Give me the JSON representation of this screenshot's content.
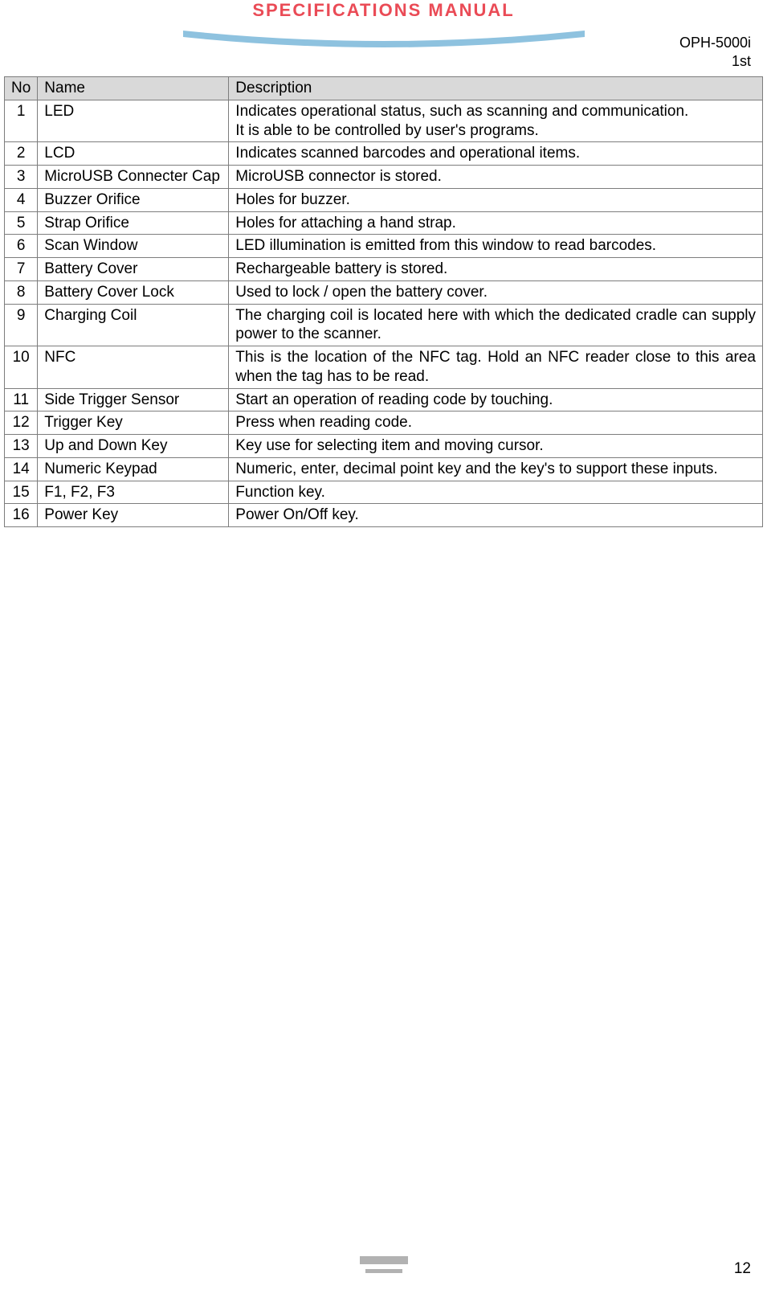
{
  "header": {
    "title": "SPECIFICATIONS MANUAL",
    "model": "OPH-5000i",
    "revision": "1st"
  },
  "table": {
    "columns": [
      "No",
      "Name",
      "Description"
    ],
    "rows": [
      {
        "no": "1",
        "name": "LED",
        "desc": "Indicates operational status, such as scanning and communication.\nIt is able to be controlled by user's programs."
      },
      {
        "no": "2",
        "name": "LCD",
        "desc": "Indicates scanned barcodes and operational items."
      },
      {
        "no": "3",
        "name": "MicroUSB Connecter Cap",
        "desc": "MicroUSB connector is stored."
      },
      {
        "no": "4",
        "name": "Buzzer Orifice",
        "desc": "Holes for buzzer."
      },
      {
        "no": "5",
        "name": "Strap Orifice",
        "desc": "Holes for attaching a hand strap."
      },
      {
        "no": "6",
        "name": "Scan Window",
        "desc": "LED illumination is emitted from this window to read barcodes."
      },
      {
        "no": "7",
        "name": "Battery Cover",
        "desc": "Rechargeable battery is stored."
      },
      {
        "no": "8",
        "name": "Battery Cover Lock",
        "desc": "Used to lock / open the battery cover."
      },
      {
        "no": "9",
        "name": "Charging Coil",
        "desc": "The charging coil is located here with which the dedicated cradle can supply power to the scanner.",
        "justify": true
      },
      {
        "no": "10",
        "name": "NFC",
        "desc": "This is the location of the NFC tag. Hold an NFC reader close to this area when the tag has to be read.",
        "justify": true
      },
      {
        "no": "11",
        "name": "Side Trigger Sensor",
        "desc": "Start an operation of reading code by touching."
      },
      {
        "no": "12",
        "name": "Trigger Key",
        "desc": "Press when reading code."
      },
      {
        "no": "13",
        "name": "Up and Down Key",
        "desc": "Key use for selecting item and moving cursor."
      },
      {
        "no": "14",
        "name": "Numeric Keypad",
        "desc": "Numeric, enter, decimal point key and the key's to support these inputs.",
        "justify": true
      },
      {
        "no": "15",
        "name": "F1, F2, F3",
        "desc": "Function key."
      },
      {
        "no": "16",
        "name": "Power Key",
        "desc": "Power On/Off key."
      }
    ]
  },
  "footer": {
    "pageNumber": "12"
  },
  "styling": {
    "title_color": "#ea4b56",
    "swoosh_color": "#8ec2df",
    "header_bg": "#d9d9d9",
    "border_color": "#7d7d7d",
    "footer_bar_color": "#b2b2b2"
  }
}
